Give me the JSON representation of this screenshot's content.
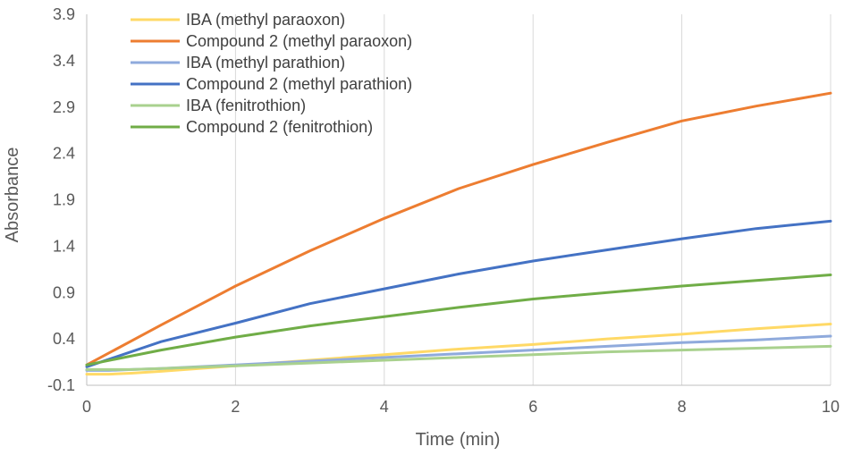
{
  "chart_data": {
    "type": "line",
    "title": "",
    "xlabel": "Time (min)",
    "ylabel": "Absorbance",
    "xlim": [
      0,
      10
    ],
    "ylim": [
      -0.1,
      3.9
    ],
    "xticks": [
      0,
      2,
      4,
      6,
      8,
      10
    ],
    "yticks": [
      -0.1,
      0.4,
      0.9,
      1.4,
      1.9,
      2.4,
      2.9,
      3.4,
      3.9
    ],
    "grid": "vertical",
    "legend_position": "top-left",
    "series": [
      {
        "name": "IBA (methyl paraoxon)",
        "color": "#FFD966",
        "x": [
          0,
          0.3,
          0.6,
          1,
          2,
          3,
          4,
          5,
          6,
          7,
          8,
          9,
          10
        ],
        "y": [
          0.02,
          0.02,
          0.03,
          0.05,
          0.11,
          0.17,
          0.23,
          0.29,
          0.34,
          0.4,
          0.45,
          0.51,
          0.56
        ]
      },
      {
        "name": "Compound 2 (methyl paraoxon)",
        "color": "#ED7D31",
        "x": [
          0,
          1,
          2,
          3,
          4,
          5,
          6,
          7,
          8,
          9,
          10
        ],
        "y": [
          0.12,
          0.55,
          0.97,
          1.35,
          1.7,
          2.02,
          2.28,
          2.52,
          2.75,
          2.91,
          3.05
        ]
      },
      {
        "name": "IBA (methyl parathion)",
        "color": "#8FAADC",
        "x": [
          0,
          0.3,
          0.6,
          1,
          2,
          3,
          4,
          5,
          6,
          7,
          8,
          9,
          10
        ],
        "y": [
          0.06,
          0.06,
          0.07,
          0.08,
          0.12,
          0.16,
          0.2,
          0.24,
          0.28,
          0.32,
          0.36,
          0.39,
          0.43
        ]
      },
      {
        "name": "Compound 2 (methyl parathion)",
        "color": "#4472C4",
        "x": [
          0,
          1,
          2,
          3,
          4,
          5,
          6,
          7,
          8,
          9,
          10
        ],
        "y": [
          0.1,
          0.37,
          0.57,
          0.78,
          0.94,
          1.1,
          1.24,
          1.36,
          1.48,
          1.59,
          1.67
        ]
      },
      {
        "name": "IBA (fenitrothion)",
        "color": "#A9D18E",
        "x": [
          0,
          0.3,
          0.6,
          1,
          2,
          3,
          4,
          5,
          6,
          7,
          8,
          9,
          10
        ],
        "y": [
          0.07,
          0.07,
          0.07,
          0.08,
          0.11,
          0.14,
          0.17,
          0.2,
          0.23,
          0.26,
          0.28,
          0.3,
          0.32
        ]
      },
      {
        "name": "Compound 2 (fenitrothion)",
        "color": "#70AD47",
        "x": [
          0,
          1,
          2,
          3,
          4,
          5,
          6,
          7,
          8,
          9,
          10
        ],
        "y": [
          0.12,
          0.28,
          0.42,
          0.54,
          0.64,
          0.74,
          0.83,
          0.9,
          0.97,
          1.03,
          1.09
        ]
      }
    ]
  }
}
